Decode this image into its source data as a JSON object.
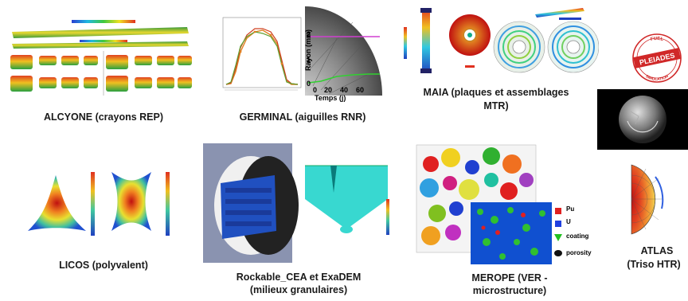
{
  "labels": {
    "alcyone": "ALCYONE (crayons REP)",
    "germinal": "GERMINAL (aiguilles RNR)",
    "maia_1": "MAIA (plaques et assemblages",
    "maia_2": "MTR)",
    "licos": "LICOS (polyvalent)",
    "rockable_1": "Rockable_CEA et ExaDEM",
    "rockable_2": "(milieux granulaires)",
    "merope_1": "MEROPE (VER -",
    "merope_2": "microstructure)",
    "atlas_1": "ATLAS",
    "atlas_2": "(Triso HTR)"
  },
  "pleiades_logo": {
    "text": "PLEIADES",
    "ring_top": "FUEL",
    "ring_bottom": "SIMULATION"
  },
  "germinal_inset": {
    "ylabel": "Rayon (mm)",
    "xlabel": "Temps (j)",
    "yticks": [
      "2",
      "1",
      "0"
    ],
    "xticks": [
      "0",
      "20",
      "40",
      "60"
    ]
  },
  "merope_legend": [
    "Pu",
    "U",
    "coating",
    "porosity"
  ],
  "colors": {
    "legend_pu": "#e02020",
    "legend_u": "#2040e0",
    "legend_coating": "#20c020",
    "legend_porosity": "#111111"
  }
}
